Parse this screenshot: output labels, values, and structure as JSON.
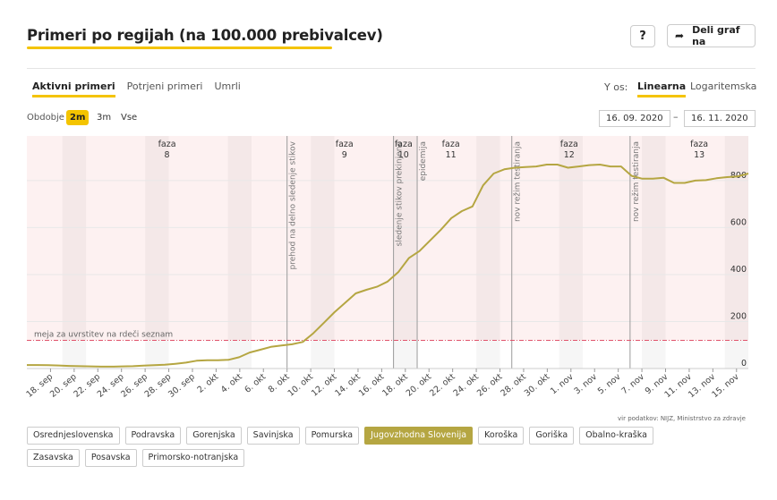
{
  "header": {
    "title": "Primeri po regijah (na 100.000 prebivalcev)",
    "help_label": "?",
    "share_label": "Deli graf na"
  },
  "tabs": [
    {
      "label": "Aktivni primeri",
      "active": true
    },
    {
      "label": "Potrjeni primeri",
      "active": false
    },
    {
      "label": "Umrli",
      "active": false
    }
  ],
  "yaxis_toggle": {
    "label": "Y os:",
    "options": [
      {
        "label": "Linearna",
        "active": true
      },
      {
        "label": "Logaritemska",
        "active": false
      }
    ]
  },
  "period": {
    "label": "Obdobje",
    "options": [
      {
        "label": "2m",
        "active": true
      },
      {
        "label": "3m",
        "active": false
      },
      {
        "label": "Vse",
        "active": false
      }
    ],
    "date_from": "16. 09. 2020",
    "date_to": "16. 11. 2020",
    "separator": "–"
  },
  "source_note": "vir podatkov: NIJZ, Ministrstvo za zdravje",
  "regions": [
    {
      "label": "Osrednjeslovenska",
      "active": false
    },
    {
      "label": "Podravska",
      "active": false
    },
    {
      "label": "Gorenjska",
      "active": false
    },
    {
      "label": "Savinjska",
      "active": false
    },
    {
      "label": "Pomurska",
      "active": false
    },
    {
      "label": "Jugovzhodna Slovenija",
      "active": true
    },
    {
      "label": "Koroška",
      "active": false
    },
    {
      "label": "Goriška",
      "active": false
    },
    {
      "label": "Obalno-kraška",
      "active": false
    },
    {
      "label": "Zasavska",
      "active": false
    },
    {
      "label": "Posavska",
      "active": false
    },
    {
      "label": "Primorsko-notranjska",
      "active": false
    }
  ],
  "colors": {
    "accent": "#f4c400",
    "series": "#b5a642",
    "threshold": "#e0536b",
    "region_active": "#b5a642"
  },
  "chart_data": {
    "type": "line",
    "start_date": "2020-09-16",
    "end_date": "2020-11-16",
    "x_tick_labels": [
      "18. sep",
      "20. sep",
      "22. sep",
      "24. sep",
      "26. sep",
      "28. sep",
      "30. sep",
      "2. okt",
      "4. okt",
      "6. okt",
      "8. okt",
      "10. okt",
      "12. okt",
      "14. okt",
      "16. okt",
      "18. okt",
      "20. okt",
      "22. okt",
      "24. okt",
      "26. okt",
      "28. okt",
      "30. okt",
      "1. nov",
      "3. nov",
      "5. nov",
      "7. nov",
      "9. nov",
      "11. nov",
      "13. nov",
      "15. nov"
    ],
    "yticks": [
      0,
      200,
      400,
      600,
      800
    ],
    "ylim": [
      0,
      990
    ],
    "series": [
      {
        "name": "Jugovzhodna Slovenija",
        "values": [
          15,
          15,
          14,
          13,
          11,
          10,
          9,
          8,
          8,
          9,
          10,
          12,
          14,
          16,
          20,
          25,
          33,
          35,
          35,
          37,
          48,
          68,
          80,
          92,
          98,
          103,
          113,
          150,
          195,
          240,
          280,
          320,
          335,
          348,
          370,
          410,
          470,
          500,
          545,
          590,
          640,
          670,
          690,
          780,
          830,
          848,
          855,
          858,
          860,
          868,
          868,
          855,
          860,
          866,
          868,
          860,
          860,
          820,
          808,
          808,
          812,
          790,
          790,
          800,
          802,
          810,
          815,
          818,
          830
        ]
      }
    ],
    "threshold": {
      "label": "meja za uvrstitev na rdeči seznam",
      "value": 120
    },
    "phases": [
      {
        "label": "faza",
        "number": "8"
      },
      {
        "label": "faza",
        "number": "9"
      },
      {
        "label": "faza",
        "number": "10"
      },
      {
        "label": "faza",
        "number": "11"
      },
      {
        "label": "faza",
        "number": "12"
      },
      {
        "label": "faza",
        "number": "13"
      }
    ],
    "events": [
      {
        "label": "prehod na delno sledenje stikov"
      },
      {
        "label": "sledenje stikov prekinjeno"
      },
      {
        "label": "epidemija"
      },
      {
        "label": "nov režim testiranja"
      },
      {
        "label": "nov režim testiranja"
      }
    ]
  }
}
